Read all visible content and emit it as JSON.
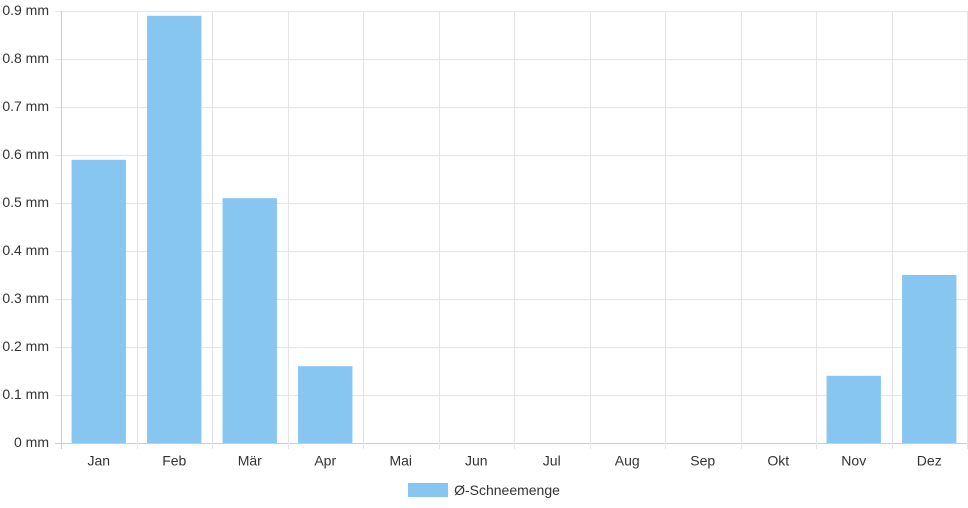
{
  "chart_data": {
    "type": "bar",
    "categories": [
      "Jan",
      "Feb",
      "Mär",
      "Apr",
      "Mai",
      "Jun",
      "Jul",
      "Aug",
      "Sep",
      "Okt",
      "Nov",
      "Dez"
    ],
    "series": [
      {
        "name": "Ø-Schneemenge",
        "values": [
          0.59,
          0.89,
          0.51,
          0.16,
          0,
          0,
          0,
          0,
          0,
          0,
          0.14,
          0.35
        ]
      }
    ],
    "yticks": [
      "0 mm",
      "0.1 mm",
      "0.2 mm",
      "0.3 mm",
      "0.4 mm",
      "0.5 mm",
      "0.6 mm",
      "0.7 mm",
      "0.8 mm",
      "0.9 mm"
    ],
    "ylim": [
      0,
      0.9
    ],
    "unit": "mm",
    "title": "",
    "xlabel": "",
    "ylabel": "",
    "grid": true,
    "legend": "bottom",
    "colors": {
      "bar": "#88c6f2",
      "grid": "#e4e4e4",
      "axis": "#cccccc",
      "text": "#333333"
    }
  }
}
